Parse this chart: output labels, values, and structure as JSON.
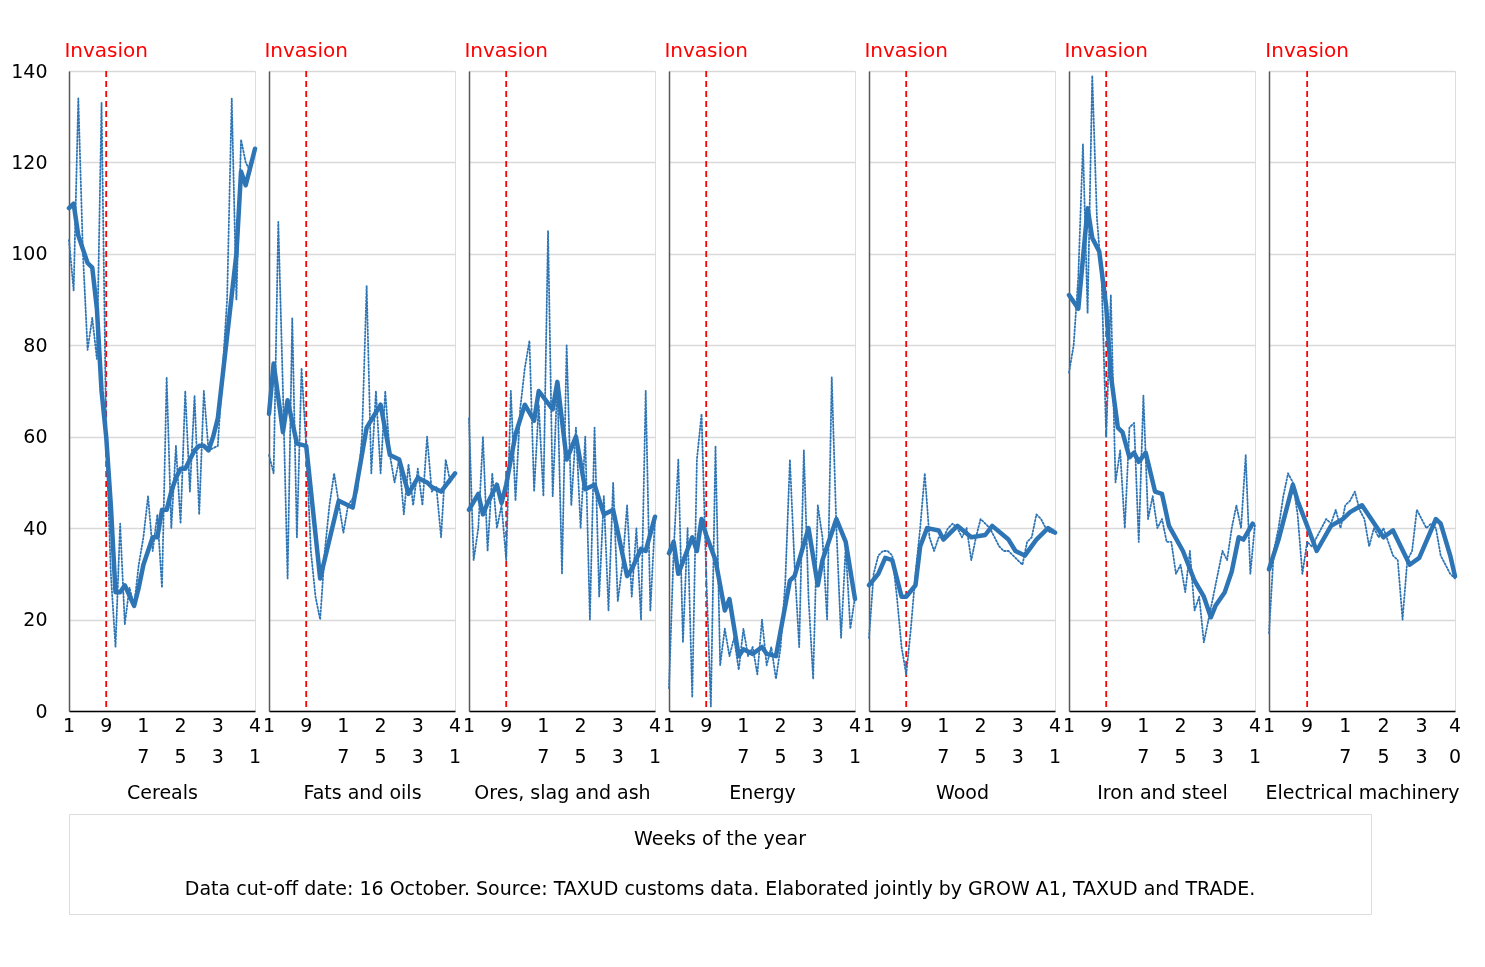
{
  "chart_data": [
    {
      "type": "line",
      "xlabel": "Cereals",
      "xlim": [
        1,
        41
      ],
      "xticks": [
        1,
        9,
        17,
        25,
        33,
        41
      ],
      "ylim": [
        0,
        140
      ],
      "yticks": [
        0,
        20,
        40,
        60,
        80,
        100,
        120,
        140
      ],
      "grid": "y",
      "ref_lines": [
        {
          "axis": "x",
          "value": 9,
          "label": "Invasion",
          "color": "#ff0000",
          "line_style": "dashed"
        }
      ],
      "series": [
        {
          "color": "#2e75b6",
          "line_style": "dotted",
          "x": [
            1,
            2,
            3,
            4,
            5,
            6,
            7,
            8,
            9,
            10,
            11,
            12,
            13,
            14,
            15,
            16,
            17,
            18,
            19,
            20,
            21,
            22,
            23,
            24,
            25,
            26,
            27,
            28,
            29,
            30,
            31,
            33,
            35,
            36,
            37,
            38,
            39,
            40,
            41
          ],
          "values": [
            103,
            92,
            134,
            100,
            79,
            86,
            77,
            133,
            60,
            30,
            14,
            41,
            19,
            27,
            23,
            32,
            38,
            47,
            35,
            43,
            27,
            73,
            40,
            58,
            41,
            70,
            48,
            69,
            43,
            70,
            57,
            58,
            90,
            134,
            90,
            125,
            120,
            118,
            123
          ]
        },
        {
          "color": "#2e75b6",
          "line_style": "solid",
          "x": [
            1,
            2,
            3,
            5,
            6,
            7,
            8,
            9,
            10,
            11,
            12,
            13,
            15,
            16,
            17,
            18,
            19,
            20,
            21,
            22,
            23,
            24,
            25,
            26,
            27,
            28,
            29,
            30,
            31,
            32,
            33,
            35,
            37,
            38,
            39,
            41
          ],
          "values": [
            110,
            111,
            104,
            98,
            97,
            88,
            70,
            60,
            45,
            26,
            26,
            27.5,
            23,
            27,
            32,
            35,
            38,
            38,
            44,
            44,
            48,
            51,
            53,
            53,
            55,
            57,
            58,
            58,
            57,
            60,
            64,
            82,
            100,
            118,
            115,
            123
          ]
        }
      ]
    },
    {
      "type": "line",
      "xlabel": "Fats and oils",
      "xlim": [
        1,
        41
      ],
      "xticks": [
        1,
        9,
        17,
        25,
        33,
        41
      ],
      "ylim": [
        0,
        140
      ],
      "yticks": [
        0,
        20,
        40,
        60,
        80,
        100,
        120,
        140
      ],
      "grid": "y",
      "tick_labels": "x",
      "ref_lines": [
        {
          "axis": "x",
          "value": 9,
          "label": "Invasion",
          "color": "#ff0000",
          "line_style": "dashed"
        }
      ],
      "series": [
        {
          "color": "#2e75b6",
          "line_style": "dotted",
          "x": [
            1,
            2,
            3,
            4,
            5,
            6,
            7,
            8,
            9,
            10,
            11,
            12,
            13,
            14,
            15,
            17,
            18,
            20,
            21,
            22,
            23,
            24,
            25,
            26,
            27,
            28,
            29,
            30,
            31,
            32,
            33,
            34,
            35,
            36,
            37,
            38,
            39,
            40,
            41
          ],
          "values": [
            56,
            52,
            107,
            70,
            29,
            86,
            38,
            75,
            58,
            35,
            25,
            20,
            35,
            45,
            52,
            39,
            45,
            48,
            60,
            93,
            52,
            70,
            52,
            70,
            56,
            50,
            55,
            43,
            54,
            45,
            53,
            45,
            60,
            48,
            49,
            38,
            55,
            50,
            52
          ]
        },
        {
          "color": "#2e75b6",
          "line_style": "solid",
          "x": [
            1,
            2,
            4,
            5,
            7,
            9,
            12,
            16,
            19,
            22,
            25,
            27,
            29,
            31,
            33,
            35,
            36,
            38,
            41
          ],
          "values": [
            65,
            76,
            61,
            68,
            58.5,
            58,
            29,
            46,
            44.5,
            62,
            67,
            56,
            55,
            47.5,
            51,
            50,
            49,
            48,
            52
          ]
        }
      ]
    },
    {
      "type": "line",
      "xlabel": "Ores, slag and ash",
      "xlim": [
        1,
        41
      ],
      "xticks": [
        1,
        9,
        17,
        25,
        33,
        41
      ],
      "ylim": [
        0,
        140
      ],
      "yticks": [
        0,
        20,
        40,
        60,
        80,
        100,
        120,
        140
      ],
      "grid": "y",
      "tick_labels": "x",
      "ref_lines": [
        {
          "axis": "x",
          "value": 9,
          "label": "Invasion",
          "color": "#ff0000",
          "line_style": "dashed"
        }
      ],
      "series": [
        {
          "color": "#2e75b6",
          "line_style": "dotted",
          "x": [
            1,
            2,
            3,
            4,
            5,
            6,
            7,
            8,
            9,
            10,
            11,
            12,
            13,
            14,
            15,
            16,
            17,
            18,
            19,
            20,
            21,
            22,
            23,
            24,
            25,
            26,
            27,
            28,
            29,
            30,
            31,
            32,
            33,
            34,
            35,
            36,
            37,
            38,
            39,
            40,
            41
          ],
          "values": [
            64,
            33,
            40,
            60,
            35,
            52,
            40,
            45,
            33,
            70,
            46,
            66,
            75,
            81,
            48,
            67,
            47,
            105,
            47,
            72,
            30,
            80,
            45,
            62,
            40,
            60,
            20,
            62,
            25,
            47,
            22,
            50,
            24,
            32,
            45,
            25,
            40,
            20,
            70,
            22,
            42
          ]
        },
        {
          "color": "#2e75b6",
          "line_style": "solid",
          "x": [
            1,
            3,
            4,
            5,
            7,
            8,
            9,
            11,
            13,
            15,
            16,
            19,
            20,
            22,
            24,
            26,
            28,
            30,
            32,
            35,
            36,
            38,
            39,
            41
          ],
          "values": [
            44,
            47.5,
            43,
            45.5,
            49.5,
            45.5,
            49.5,
            60.5,
            67,
            63.5,
            70,
            66,
            72,
            55,
            60,
            48.5,
            49.5,
            43,
            44,
            29.5,
            31,
            35.5,
            35,
            42.5
          ]
        }
      ]
    },
    {
      "type": "line",
      "xlabel": "Energy",
      "xlim": [
        1,
        41
      ],
      "xticks": [
        1,
        9,
        17,
        25,
        33,
        41
      ],
      "ylim": [
        0,
        140
      ],
      "yticks": [
        0,
        20,
        40,
        60,
        80,
        100,
        120,
        140
      ],
      "grid": "y",
      "tick_labels": "x",
      "ref_lines": [
        {
          "axis": "x",
          "value": 9,
          "label": "Invasion",
          "color": "#ff0000",
          "line_style": "dashed"
        }
      ],
      "series": [
        {
          "color": "#2e75b6",
          "line_style": "dotted",
          "x": [
            1,
            2,
            3,
            4,
            5,
            6,
            7,
            8,
            9,
            10,
            11,
            12,
            13,
            14,
            15,
            16,
            17,
            18,
            19,
            20,
            21,
            22,
            23,
            24,
            25,
            26,
            27,
            28,
            29,
            30,
            31,
            32,
            33,
            34,
            35,
            36,
            37,
            38,
            39,
            40,
            41
          ],
          "values": [
            5,
            35,
            55,
            15,
            40,
            3,
            55,
            65,
            30,
            1,
            58,
            10,
            18,
            12,
            16,
            9,
            18,
            12,
            14,
            8,
            20,
            10,
            14,
            7,
            14,
            28,
            55,
            32,
            14,
            57,
            25,
            7,
            45,
            38,
            20,
            73,
            40,
            16,
            36,
            18,
            25
          ]
        },
        {
          "color": "#2e75b6",
          "line_style": "solid",
          "x": [
            1,
            2,
            3,
            6,
            7,
            8,
            9,
            11,
            13,
            14,
            16,
            17,
            19,
            21,
            22,
            24,
            27,
            28,
            31,
            33,
            34,
            35,
            37,
            39,
            41
          ],
          "values": [
            34.5,
            37,
            30,
            38,
            35,
            42,
            38.5,
            33,
            22,
            24.5,
            12,
            13.5,
            12.5,
            14,
            12.5,
            12,
            28.5,
            29.5,
            40,
            27.5,
            33,
            36,
            42,
            37,
            24.5
          ]
        }
      ]
    },
    {
      "type": "line",
      "xlabel": "Wood",
      "xlim": [
        1,
        41
      ],
      "xticks": [
        1,
        9,
        17,
        25,
        33,
        41
      ],
      "ylim": [
        0,
        140
      ],
      "yticks": [
        0,
        20,
        40,
        60,
        80,
        100,
        120,
        140
      ],
      "grid": "y",
      "tick_labels": "x",
      "ref_lines": [
        {
          "axis": "x",
          "value": 9,
          "label": "Invasion",
          "color": "#ff0000",
          "line_style": "dashed"
        }
      ],
      "series": [
        {
          "color": "#2e75b6",
          "line_style": "dotted",
          "x": [
            1,
            2,
            3,
            4,
            5,
            6,
            7,
            8,
            9,
            10,
            11,
            12,
            13,
            14,
            15,
            16,
            17,
            18,
            19,
            20,
            21,
            22,
            23,
            24,
            25,
            26,
            27,
            28,
            29,
            30,
            31,
            32,
            33,
            34,
            35,
            36,
            37,
            38,
            39,
            40,
            41
          ],
          "values": [
            16,
            30,
            34,
            35,
            35,
            34,
            25,
            14,
            8,
            18,
            30,
            40,
            52,
            38,
            35,
            38,
            38,
            40,
            41,
            40,
            38,
            40,
            33,
            38,
            42,
            41,
            40,
            38,
            36,
            35,
            35,
            34,
            33,
            32,
            37,
            38,
            43,
            42,
            40,
            39,
            39
          ]
        },
        {
          "color": "#2e75b6",
          "line_style": "solid",
          "x": [
            1,
            3,
            4.5,
            6,
            8,
            9,
            11,
            12,
            13.5,
            16,
            17,
            20,
            23,
            26,
            27.5,
            31,
            32.5,
            34.5,
            37,
            39.5,
            41
          ],
          "values": [
            27.5,
            30,
            33.5,
            33,
            25,
            25,
            27.5,
            36,
            40,
            39.5,
            37.5,
            40.5,
            38,
            38.5,
            40.5,
            37.5,
            35,
            34,
            37.5,
            40,
            39
          ]
        }
      ]
    },
    {
      "type": "line",
      "xlabel": "Iron and steel",
      "xlim": [
        1,
        41
      ],
      "xticks": [
        1,
        9,
        17,
        25,
        33,
        41
      ],
      "ylim": [
        0,
        140
      ],
      "yticks": [
        0,
        20,
        40,
        60,
        80,
        100,
        120,
        140
      ],
      "grid": "y",
      "tick_labels": "x",
      "ref_lines": [
        {
          "axis": "x",
          "value": 9,
          "label": "Invasion",
          "color": "#ff0000",
          "line_style": "dashed"
        }
      ],
      "series": [
        {
          "color": "#2e75b6",
          "line_style": "dotted",
          "x": [
            1,
            2,
            3,
            4,
            5,
            6,
            7,
            8,
            9,
            10,
            11,
            12,
            13,
            14,
            15,
            16,
            17,
            18,
            19,
            20,
            21,
            22,
            23,
            24,
            25,
            26,
            27,
            28,
            29,
            30,
            31,
            32,
            33,
            34,
            35,
            36,
            37,
            38,
            39,
            40,
            41
          ],
          "values": [
            74,
            80,
            95,
            124,
            87,
            139,
            108,
            95,
            60,
            91,
            50,
            57,
            40,
            62,
            63,
            37,
            69,
            42,
            47,
            40,
            42,
            37,
            37,
            30,
            32,
            26,
            35,
            22,
            25,
            15,
            20,
            25,
            30,
            35,
            33,
            40,
            45,
            40,
            56,
            30,
            41
          ]
        },
        {
          "color": "#2e75b6",
          "line_style": "solid",
          "x": [
            1,
            3,
            5,
            6,
            7.5,
            9,
            10,
            11.5,
            12.5,
            14,
            15,
            16,
            17.5,
            19.5,
            21,
            22.5,
            25.5,
            28,
            30,
            31.5,
            32.5,
            34.5,
            36,
            37.5,
            38.5,
            40.5
          ],
          "values": [
            91,
            88,
            110,
            103.5,
            100.5,
            88.5,
            73.5,
            62,
            61,
            55.5,
            56.5,
            54.5,
            56.5,
            48,
            47.5,
            40.5,
            35,
            28.5,
            25,
            20.5,
            23,
            26,
            30.5,
            38,
            37.5,
            41
          ]
        }
      ]
    },
    {
      "type": "line",
      "xlabel": "Electrical machinery",
      "xlim": [
        1,
        40
      ],
      "xticks": [
        1,
        9,
        17,
        25,
        33,
        40
      ],
      "ylim": [
        0,
        140
      ],
      "yticks": [
        0,
        20,
        40,
        60,
        80,
        100,
        120,
        140
      ],
      "grid": "y",
      "tick_labels": "x",
      "ref_lines": [
        {
          "axis": "x",
          "value": 9,
          "label": "Invasion",
          "color": "#ff0000",
          "line_style": "dashed"
        }
      ],
      "series": [
        {
          "color": "#2e75b6",
          "line_style": "dotted",
          "x": [
            1,
            2,
            3,
            4,
            5,
            6,
            7,
            8,
            9,
            10,
            11,
            12,
            13,
            14,
            15,
            16,
            17,
            18,
            19,
            20,
            21,
            22,
            23,
            24,
            25,
            26,
            27,
            28,
            29,
            30,
            31,
            32,
            33,
            34,
            35,
            36,
            37,
            38,
            39,
            40
          ],
          "values": [
            17,
            35,
            40,
            47,
            52,
            50,
            43,
            30,
            37,
            36,
            38,
            40,
            42,
            41,
            44,
            40,
            45,
            46,
            48,
            44,
            42,
            36,
            40,
            38,
            40,
            37,
            34,
            33,
            20,
            33,
            35,
            44,
            42,
            40,
            41,
            40,
            34,
            32,
            30,
            29
          ]
        },
        {
          "color": "#2e75b6",
          "line_style": "solid",
          "x": [
            1,
            3,
            6,
            7,
            11,
            14,
            16.5,
            18,
            20.5,
            25,
            27,
            30.5,
            32.5,
            36,
            37,
            39,
            40
          ],
          "values": [
            31,
            37.5,
            49.5,
            46,
            35,
            40.5,
            42,
            43.5,
            45,
            38,
            39.5,
            32,
            33.5,
            42,
            41,
            34,
            29.5
          ]
        }
      ]
    },
    {
      "type": "other",
      "annotations": [
        "Weeks of the year",
        "Data cut-off date: 16 October. Source: TAXUD customs data. Elaborated jointly by GROW A1, TAXUD and TRADE."
      ]
    }
  ]
}
